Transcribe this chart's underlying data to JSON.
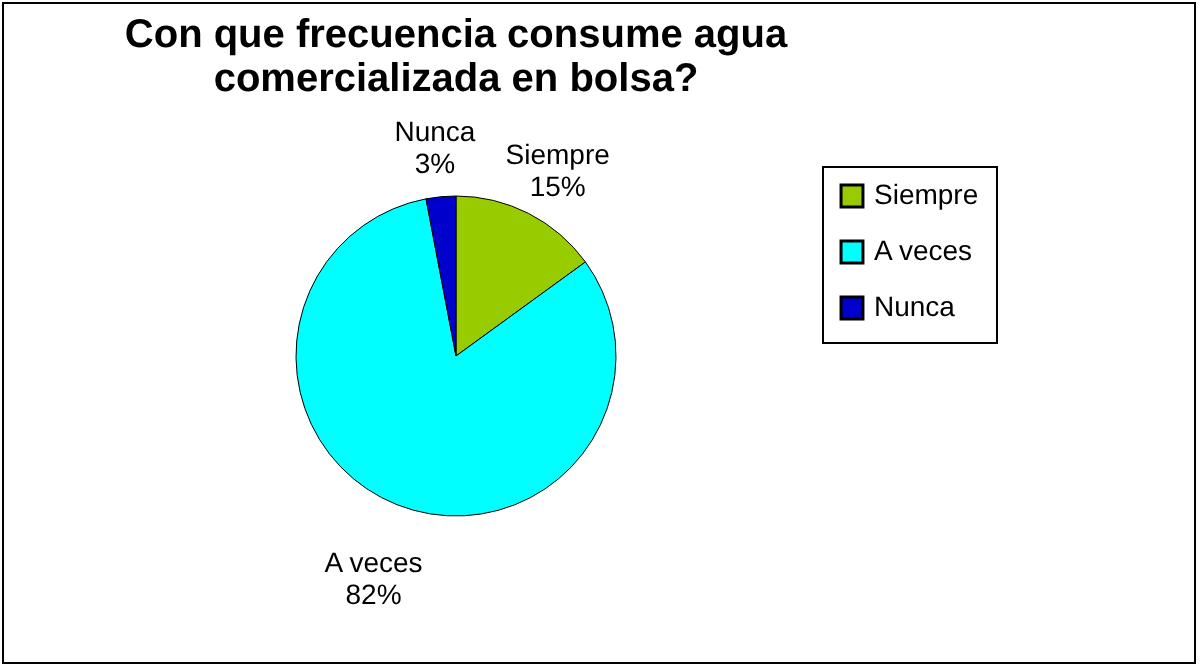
{
  "chart_data": {
    "type": "pie",
    "title": "Con que frecuencia consume agua comercializada en bolsa?",
    "categories": [
      "Siempre",
      "A veces",
      "Nunca"
    ],
    "values": [
      15,
      82,
      3
    ],
    "value_labels": [
      "15%",
      "82%",
      "3%"
    ],
    "colors": [
      "#99cc00",
      "#00ffff",
      "#0000cc"
    ],
    "legend": "right"
  }
}
